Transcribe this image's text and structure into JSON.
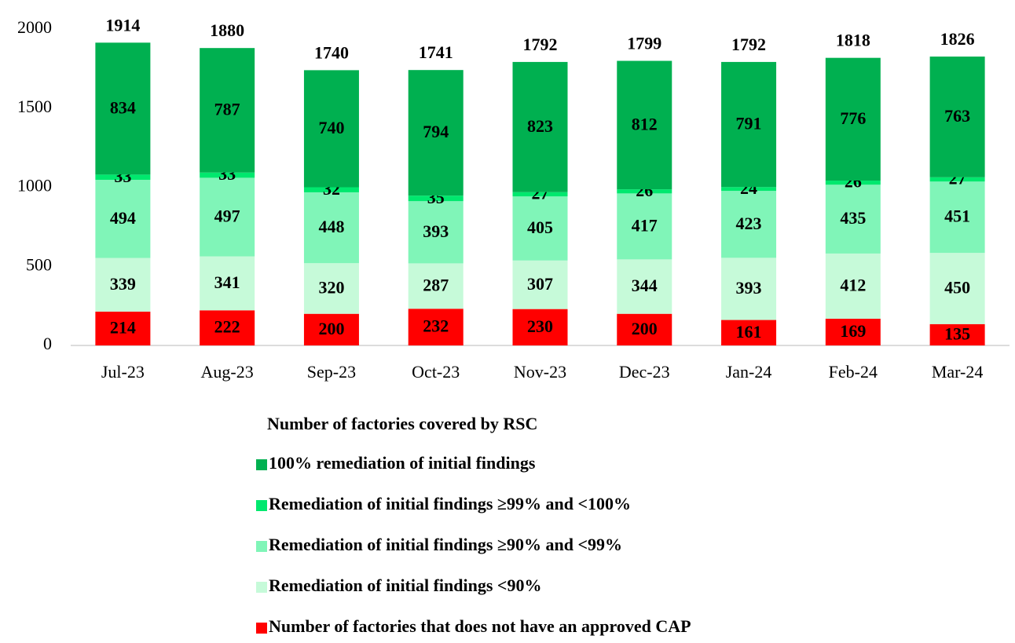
{
  "chart_data": {
    "type": "stacked_bar",
    "categories": [
      "Jul-23",
      "Aug-23",
      "Sep-23",
      "Oct-23",
      "Nov-23",
      "Dec-23",
      "Jan-24",
      "Feb-24",
      "Mar-24"
    ],
    "series": [
      {
        "name": "Number of factories that does not have an approved CAP",
        "color": "#ff0000",
        "values": [
          214,
          222,
          200,
          232,
          230,
          200,
          161,
          169,
          135
        ]
      },
      {
        "name": "Remediation of initial findings <90%",
        "color": "#c6fad9",
        "values": [
          339,
          341,
          320,
          287,
          307,
          344,
          393,
          412,
          450
        ]
      },
      {
        "name": "Remediation of initial findings ≥90% and <99%",
        "color": "#80f5b8",
        "values": [
          494,
          497,
          448,
          393,
          405,
          417,
          423,
          435,
          451
        ]
      },
      {
        "name": "Remediation of initial findings ≥99% and <100%",
        "color": "#00e86e",
        "values": [
          33,
          33,
          32,
          35,
          27,
          26,
          24,
          26,
          27
        ]
      },
      {
        "name": "100% remediation of initial findings",
        "color": "#00b050",
        "values": [
          834,
          787,
          740,
          794,
          823,
          812,
          791,
          776,
          763
        ]
      }
    ],
    "totals": [
      1914,
      1880,
      1740,
      1741,
      1792,
      1799,
      1792,
      1818,
      1826
    ],
    "legend_title": "Number of factories covered by RSC",
    "ylim": [
      0,
      2000
    ],
    "yticks": [
      0,
      500,
      1000,
      1500,
      2000
    ],
    "grid": false
  }
}
